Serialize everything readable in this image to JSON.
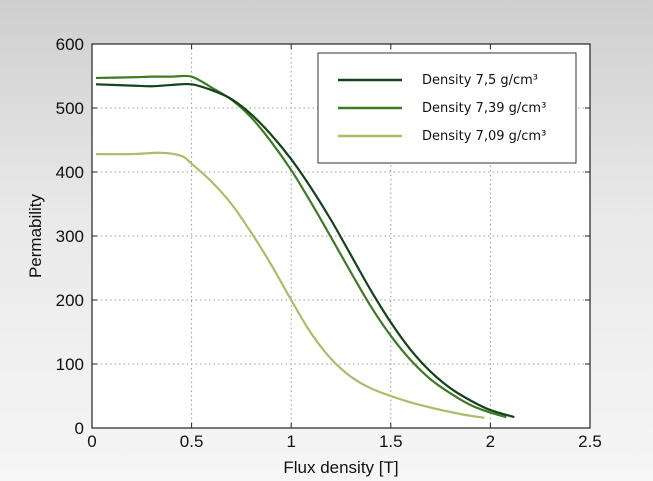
{
  "chart_data": {
    "type": "line",
    "title": "",
    "xlabel": "Flux density [T]",
    "ylabel": "Permability",
    "xlim": [
      0,
      2.5
    ],
    "ylim": [
      0,
      600
    ],
    "xticks": [
      "0",
      "0.5",
      "1",
      "1.5",
      "2",
      "2.5"
    ],
    "yticks": [
      "0",
      "100",
      "200",
      "300",
      "400",
      "500",
      "600"
    ],
    "grid": true,
    "legend_position": "top-right",
    "series": [
      {
        "name": "Density 7,5 g/cm³",
        "color": "#14421a",
        "points": [
          [
            0.02,
            537
          ],
          [
            0.2,
            535
          ],
          [
            0.3,
            534
          ],
          [
            0.4,
            536
          ],
          [
            0.5,
            537
          ],
          [
            0.6,
            528
          ],
          [
            0.7,
            514
          ],
          [
            0.8,
            490
          ],
          [
            0.9,
            458
          ],
          [
            1.0,
            420
          ],
          [
            1.1,
            375
          ],
          [
            1.2,
            325
          ],
          [
            1.3,
            270
          ],
          [
            1.4,
            215
          ],
          [
            1.5,
            165
          ],
          [
            1.6,
            122
          ],
          [
            1.7,
            88
          ],
          [
            1.8,
            62
          ],
          [
            1.9,
            43
          ],
          [
            2.0,
            28
          ],
          [
            2.12,
            17
          ]
        ]
      },
      {
        "name": "Density 7,39 g/cm³",
        "color": "#3d7a22",
        "points": [
          [
            0.02,
            547
          ],
          [
            0.2,
            548
          ],
          [
            0.3,
            549
          ],
          [
            0.4,
            549
          ],
          [
            0.5,
            549
          ],
          [
            0.6,
            532
          ],
          [
            0.7,
            513
          ],
          [
            0.8,
            485
          ],
          [
            0.9,
            447
          ],
          [
            1.0,
            403
          ],
          [
            1.1,
            352
          ],
          [
            1.2,
            298
          ],
          [
            1.3,
            243
          ],
          [
            1.4,
            190
          ],
          [
            1.5,
            144
          ],
          [
            1.6,
            106
          ],
          [
            1.7,
            76
          ],
          [
            1.8,
            54
          ],
          [
            1.9,
            36
          ],
          [
            2.0,
            24
          ],
          [
            2.08,
            17
          ]
        ]
      },
      {
        "name": "Density 7,09 g/cm³",
        "color": "#a9bd6a",
        "points": [
          [
            0.02,
            428
          ],
          [
            0.2,
            428
          ],
          [
            0.35,
            430
          ],
          [
            0.45,
            425
          ],
          [
            0.5,
            413
          ],
          [
            0.6,
            385
          ],
          [
            0.7,
            350
          ],
          [
            0.8,
            305
          ],
          [
            0.9,
            255
          ],
          [
            1.0,
            200
          ],
          [
            1.1,
            148
          ],
          [
            1.2,
            108
          ],
          [
            1.3,
            80
          ],
          [
            1.4,
            62
          ],
          [
            1.5,
            50
          ],
          [
            1.6,
            40
          ],
          [
            1.7,
            32
          ],
          [
            1.8,
            25
          ],
          [
            1.9,
            19
          ],
          [
            1.97,
            16
          ]
        ]
      }
    ]
  }
}
